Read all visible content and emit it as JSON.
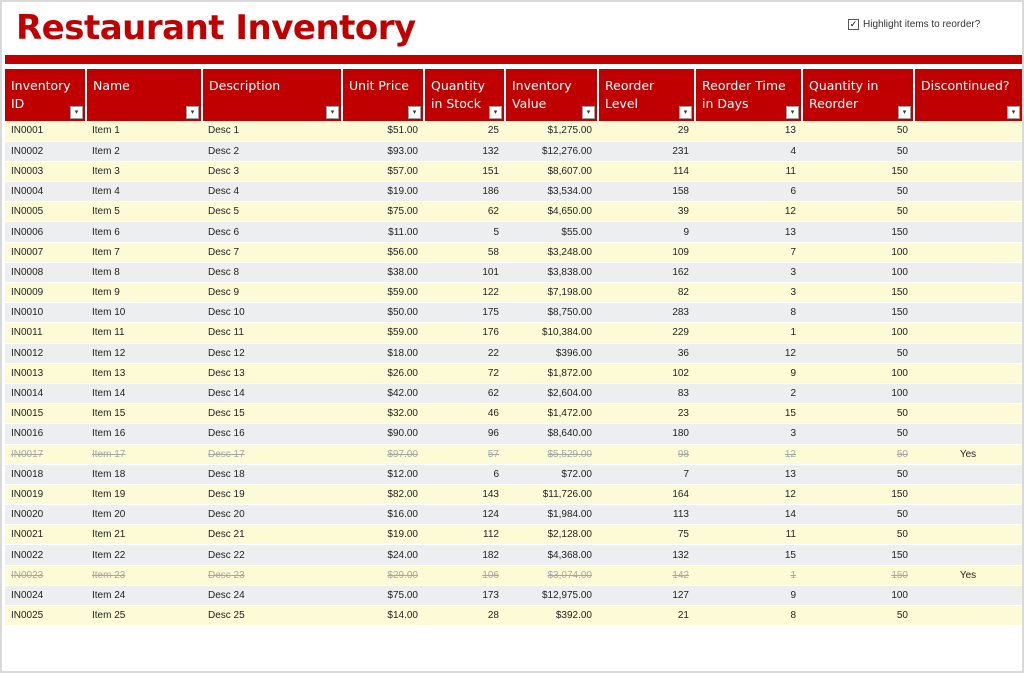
{
  "title": "Restaurant Inventory",
  "highlight_control": {
    "label": "Highlight items to reorder?",
    "checked": true,
    "check_glyph": "✓"
  },
  "filter_glyph": "▾",
  "columns": [
    "Inventory ID",
    "Name",
    "Description",
    "Unit Price",
    "Quantity in Stock",
    "Inventory Value",
    "Reorder Level",
    "Reorder Time in Days",
    "Quantity in Reorder",
    "Discontinued?"
  ],
  "rows": [
    {
      "id": "IN0001",
      "name": "Item 1",
      "desc": "Desc 1",
      "price": "$51.00",
      "qty": "25",
      "value": "$1,275.00",
      "reorder_level": "29",
      "reorder_days": "13",
      "reorder_qty": "50",
      "discontinued": ""
    },
    {
      "id": "IN0002",
      "name": "Item 2",
      "desc": "Desc 2",
      "price": "$93.00",
      "qty": "132",
      "value": "$12,276.00",
      "reorder_level": "231",
      "reorder_days": "4",
      "reorder_qty": "50",
      "discontinued": ""
    },
    {
      "id": "IN0003",
      "name": "Item 3",
      "desc": "Desc 3",
      "price": "$57.00",
      "qty": "151",
      "value": "$8,607.00",
      "reorder_level": "114",
      "reorder_days": "11",
      "reorder_qty": "150",
      "discontinued": ""
    },
    {
      "id": "IN0004",
      "name": "Item 4",
      "desc": "Desc 4",
      "price": "$19.00",
      "qty": "186",
      "value": "$3,534.00",
      "reorder_level": "158",
      "reorder_days": "6",
      "reorder_qty": "50",
      "discontinued": ""
    },
    {
      "id": "IN0005",
      "name": "Item 5",
      "desc": "Desc 5",
      "price": "$75.00",
      "qty": "62",
      "value": "$4,650.00",
      "reorder_level": "39",
      "reorder_days": "12",
      "reorder_qty": "50",
      "discontinued": ""
    },
    {
      "id": "IN0006",
      "name": "Item 6",
      "desc": "Desc 6",
      "price": "$11.00",
      "qty": "5",
      "value": "$55.00",
      "reorder_level": "9",
      "reorder_days": "13",
      "reorder_qty": "150",
      "discontinued": ""
    },
    {
      "id": "IN0007",
      "name": "Item 7",
      "desc": "Desc 7",
      "price": "$56.00",
      "qty": "58",
      "value": "$3,248.00",
      "reorder_level": "109",
      "reorder_days": "7",
      "reorder_qty": "100",
      "discontinued": ""
    },
    {
      "id": "IN0008",
      "name": "Item 8",
      "desc": "Desc 8",
      "price": "$38.00",
      "qty": "101",
      "value": "$3,838.00",
      "reorder_level": "162",
      "reorder_days": "3",
      "reorder_qty": "100",
      "discontinued": ""
    },
    {
      "id": "IN0009",
      "name": "Item 9",
      "desc": "Desc 9",
      "price": "$59.00",
      "qty": "122",
      "value": "$7,198.00",
      "reorder_level": "82",
      "reorder_days": "3",
      "reorder_qty": "150",
      "discontinued": ""
    },
    {
      "id": "IN0010",
      "name": "Item 10",
      "desc": "Desc 10",
      "price": "$50.00",
      "qty": "175",
      "value": "$8,750.00",
      "reorder_level": "283",
      "reorder_days": "8",
      "reorder_qty": "150",
      "discontinued": ""
    },
    {
      "id": "IN0011",
      "name": "Item 11",
      "desc": "Desc 11",
      "price": "$59.00",
      "qty": "176",
      "value": "$10,384.00",
      "reorder_level": "229",
      "reorder_days": "1",
      "reorder_qty": "100",
      "discontinued": ""
    },
    {
      "id": "IN0012",
      "name": "Item 12",
      "desc": "Desc 12",
      "price": "$18.00",
      "qty": "22",
      "value": "$396.00",
      "reorder_level": "36",
      "reorder_days": "12",
      "reorder_qty": "50",
      "discontinued": ""
    },
    {
      "id": "IN0013",
      "name": "Item 13",
      "desc": "Desc 13",
      "price": "$26.00",
      "qty": "72",
      "value": "$1,872.00",
      "reorder_level": "102",
      "reorder_days": "9",
      "reorder_qty": "100",
      "discontinued": ""
    },
    {
      "id": "IN0014",
      "name": "Item 14",
      "desc": "Desc 14",
      "price": "$42.00",
      "qty": "62",
      "value": "$2,604.00",
      "reorder_level": "83",
      "reorder_days": "2",
      "reorder_qty": "100",
      "discontinued": ""
    },
    {
      "id": "IN0015",
      "name": "Item 15",
      "desc": "Desc 15",
      "price": "$32.00",
      "qty": "46",
      "value": "$1,472.00",
      "reorder_level": "23",
      "reorder_days": "15",
      "reorder_qty": "50",
      "discontinued": ""
    },
    {
      "id": "IN0016",
      "name": "Item 16",
      "desc": "Desc 16",
      "price": "$90.00",
      "qty": "96",
      "value": "$8,640.00",
      "reorder_level": "180",
      "reorder_days": "3",
      "reorder_qty": "50",
      "discontinued": ""
    },
    {
      "id": "IN0017",
      "name": "Item 17",
      "desc": "Desc 17",
      "price": "$97.00",
      "qty": "57",
      "value": "$5,529.00",
      "reorder_level": "98",
      "reorder_days": "12",
      "reorder_qty": "50",
      "discontinued": "Yes"
    },
    {
      "id": "IN0018",
      "name": "Item 18",
      "desc": "Desc 18",
      "price": "$12.00",
      "qty": "6",
      "value": "$72.00",
      "reorder_level": "7",
      "reorder_days": "13",
      "reorder_qty": "50",
      "discontinued": ""
    },
    {
      "id": "IN0019",
      "name": "Item 19",
      "desc": "Desc 19",
      "price": "$82.00",
      "qty": "143",
      "value": "$11,726.00",
      "reorder_level": "164",
      "reorder_days": "12",
      "reorder_qty": "150",
      "discontinued": ""
    },
    {
      "id": "IN0020",
      "name": "Item 20",
      "desc": "Desc 20",
      "price": "$16.00",
      "qty": "124",
      "value": "$1,984.00",
      "reorder_level": "113",
      "reorder_days": "14",
      "reorder_qty": "50",
      "discontinued": ""
    },
    {
      "id": "IN0021",
      "name": "Item 21",
      "desc": "Desc 21",
      "price": "$19.00",
      "qty": "112",
      "value": "$2,128.00",
      "reorder_level": "75",
      "reorder_days": "11",
      "reorder_qty": "50",
      "discontinued": ""
    },
    {
      "id": "IN0022",
      "name": "Item 22",
      "desc": "Desc 22",
      "price": "$24.00",
      "qty": "182",
      "value": "$4,368.00",
      "reorder_level": "132",
      "reorder_days": "15",
      "reorder_qty": "150",
      "discontinued": ""
    },
    {
      "id": "IN0023",
      "name": "Item 23",
      "desc": "Desc 23",
      "price": "$29.00",
      "qty": "106",
      "value": "$3,074.00",
      "reorder_level": "142",
      "reorder_days": "1",
      "reorder_qty": "150",
      "discontinued": "Yes"
    },
    {
      "id": "IN0024",
      "name": "Item 24",
      "desc": "Desc 24",
      "price": "$75.00",
      "qty": "173",
      "value": "$12,975.00",
      "reorder_level": "127",
      "reorder_days": "9",
      "reorder_qty": "100",
      "discontinued": ""
    },
    {
      "id": "IN0025",
      "name": "Item 25",
      "desc": "Desc 25",
      "price": "$14.00",
      "qty": "28",
      "value": "$392.00",
      "reorder_level": "21",
      "reorder_days": "8",
      "reorder_qty": "50",
      "discontinued": ""
    }
  ],
  "colors": {
    "accent": "#c00000",
    "row_yellow": "#fdfbd6",
    "row_gray": "#edeef0",
    "discontinued_text": "#a6a6a6"
  }
}
